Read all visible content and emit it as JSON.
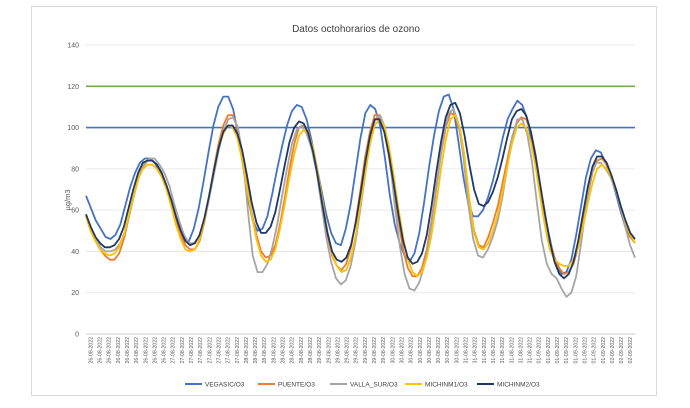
{
  "chart_data": {
    "type": "line",
    "title": "Datos octohorarios de ozono",
    "ylabel": "µg/m3",
    "xlabel": "",
    "ylim": [
      0,
      140
    ],
    "yticks": [
      0,
      20,
      40,
      60,
      80,
      100,
      120,
      140
    ],
    "x_tick_labels": [
      "26-08-2022",
      "26-08-2022",
      "26-08-2022",
      "26-08-2022",
      "26-08-2022",
      "26-08-2022",
      "26-08-2022",
      "26-08-2022",
      "26-08-2022",
      "27-08-2022",
      "27-08-2022",
      "27-08-2022",
      "27-08-2022",
      "27-08-2022",
      "27-08-2022",
      "27-08-2022",
      "27-08-2022",
      "28-08-2022",
      "28-08-2022",
      "28-08-2022",
      "28-08-2022",
      "28-08-2022",
      "28-08-2022",
      "28-08-2022",
      "28-08-2022",
      "29-08-2022",
      "29-08-2022",
      "29-08-2022",
      "29-08-2022",
      "29-08-2022",
      "29-08-2022",
      "29-08-2022",
      "29-08-2022",
      "30-08-2022",
      "30-08-2022",
      "30-08-2022",
      "30-08-2022",
      "30-08-2022",
      "30-08-2022",
      "30-08-2022",
      "30-08-2022",
      "31-08-2022",
      "31-08-2022",
      "31-08-2022",
      "31-08-2022",
      "31-08-2022",
      "31-08-2022",
      "31-08-2022",
      "31-08-2022",
      "01-09-2022",
      "01-09-2022",
      "01-09-2022",
      "01-09-2022",
      "01-09-2022",
      "01-09-2022",
      "01-09-2022",
      "01-09-2022",
      "02-09-2022",
      "02-09-2022",
      "02-09-2022"
    ],
    "reference_lines": [
      {
        "value": 120,
        "color": "#70ad47"
      },
      {
        "value": 100,
        "color": "#4472c4"
      }
    ],
    "series": [
      {
        "name": "VEGASIC/O3",
        "color": "#4472c4",
        "values": [
          67,
          61,
          55,
          51,
          47,
          46,
          48,
          53,
          62,
          71,
          78,
          83,
          85,
          85,
          83,
          79,
          73,
          67,
          58,
          50,
          46,
          45,
          51,
          61,
          74,
          88,
          101,
          110,
          115,
          115,
          109,
          97,
          82,
          66,
          55,
          50,
          51,
          57,
          68,
          80,
          91,
          101,
          108,
          111,
          110,
          104,
          94,
          82,
          70,
          58,
          49,
          44,
          43,
          51,
          63,
          79,
          95,
          107,
          111,
          109,
          101,
          85,
          67,
          53,
          44,
          38,
          35,
          39,
          49,
          64,
          81,
          96,
          108,
          115,
          116,
          109,
          93,
          76,
          63,
          57,
          57,
          60,
          66,
          74,
          84,
          95,
          104,
          109,
          113,
          111,
          104,
          92,
          78,
          63,
          53,
          42,
          33,
          29,
          30,
          36,
          48,
          62,
          76,
          85,
          89,
          88,
          83,
          77,
          69,
          60,
          52,
          47,
          46
        ]
      },
      {
        "name": "PUENTE/O3",
        "color": "#ed7d31",
        "values": [
          57,
          50,
          45,
          41,
          38,
          36,
          36,
          39,
          46,
          56,
          66,
          75,
          81,
          84,
          84,
          82,
          78,
          72,
          64,
          55,
          48,
          43,
          41,
          41,
          45,
          54,
          66,
          80,
          92,
          101,
          106,
          106,
          100,
          88,
          73,
          59,
          48,
          40,
          37,
          38,
          43,
          53,
          66,
          80,
          92,
          100,
          101,
          98,
          89,
          76,
          62,
          48,
          38,
          33,
          31,
          34,
          42,
          55,
          70,
          86,
          98,
          106,
          106,
          99,
          86,
          70,
          55,
          41,
          32,
          28,
          28,
          32,
          41,
          55,
          71,
          87,
          100,
          107,
          106,
          98,
          84,
          65,
          50,
          43,
          42,
          47,
          54,
          62,
          73,
          84,
          95,
          102,
          105,
          104,
          98,
          87,
          72,
          57,
          45,
          37,
          32,
          29,
          30,
          34,
          42,
          54,
          67,
          78,
          84,
          85,
          82,
          77,
          70,
          61,
          53,
          47,
          44
        ]
      },
      {
        "name": "VALLA_SUR/O3",
        "color": "#a5a5a5",
        "values": [
          58,
          51,
          46,
          42,
          40,
          40,
          41,
          44,
          50,
          59,
          69,
          78,
          83,
          85,
          85,
          82,
          78,
          72,
          63,
          55,
          48,
          44,
          44,
          47,
          54,
          64,
          76,
          88,
          98,
          104,
          105,
          100,
          86,
          60,
          38,
          30,
          30,
          34,
          42,
          53,
          67,
          80,
          92,
          99,
          101,
          97,
          90,
          79,
          63,
          47,
          35,
          27,
          24,
          26,
          33,
          45,
          61,
          78,
          94,
          104,
          106,
          100,
          85,
          62,
          43,
          29,
          22,
          21,
          25,
          33,
          45,
          62,
          80,
          97,
          107,
          109,
          102,
          86,
          63,
          46,
          38,
          37,
          41,
          47,
          55,
          67,
          82,
          96,
          104,
          104,
          97,
          83,
          63,
          45,
          34,
          29,
          27,
          22,
          18,
          20,
          28,
          44,
          62,
          76,
          83,
          83,
          80,
          76,
          70,
          62,
          52,
          43,
          37
        ]
      },
      {
        "name": "MICHINM1/O3",
        "color": "#ffc000",
        "values": [
          57,
          50,
          45,
          41,
          39,
          38,
          39,
          42,
          48,
          57,
          66,
          75,
          80,
          82,
          82,
          80,
          76,
          70,
          62,
          53,
          46,
          41,
          40,
          41,
          46,
          55,
          67,
          79,
          90,
          97,
          101,
          100,
          95,
          84,
          71,
          58,
          46,
          38,
          35,
          36,
          41,
          51,
          63,
          76,
          87,
          96,
          99,
          97,
          90,
          78,
          64,
          50,
          39,
          33,
          30,
          31,
          37,
          48,
          63,
          78,
          92,
          101,
          104,
          101,
          91,
          77,
          61,
          47,
          36,
          30,
          28,
          30,
          37,
          48,
          63,
          80,
          94,
          104,
          106,
          100,
          86,
          65,
          49,
          42,
          41,
          44,
          50,
          58,
          69,
          81,
          92,
          100,
          102,
          100,
          93,
          81,
          66,
          52,
          41,
          36,
          34,
          33,
          33,
          36,
          42,
          52,
          63,
          73,
          80,
          82,
          80,
          76,
          70,
          62,
          54,
          48,
          44
        ]
      },
      {
        "name": "MICHINM2/O3",
        "color": "#203864",
        "values": [
          58,
          52,
          47,
          44,
          42,
          42,
          43,
          46,
          52,
          61,
          70,
          78,
          83,
          84,
          84,
          82,
          78,
          72,
          65,
          57,
          50,
          45,
          43,
          44,
          48,
          56,
          67,
          79,
          90,
          98,
          101,
          101,
          97,
          89,
          77,
          64,
          54,
          49,
          49,
          52,
          59,
          70,
          82,
          93,
          100,
          103,
          102,
          97,
          88,
          76,
          62,
          49,
          40,
          36,
          35,
          37,
          43,
          54,
          68,
          83,
          96,
          104,
          104,
          98,
          87,
          73,
          58,
          45,
          37,
          34,
          35,
          39,
          48,
          62,
          78,
          93,
          105,
          111,
          112,
          107,
          96,
          82,
          70,
          63,
          62,
          64,
          69,
          76,
          85,
          95,
          104,
          108,
          109,
          106,
          98,
          86,
          72,
          58,
          45,
          35,
          29,
          27,
          29,
          35,
          45,
          58,
          71,
          81,
          86,
          86,
          83,
          77,
          70,
          62,
          55,
          49,
          46
        ]
      }
    ]
  }
}
